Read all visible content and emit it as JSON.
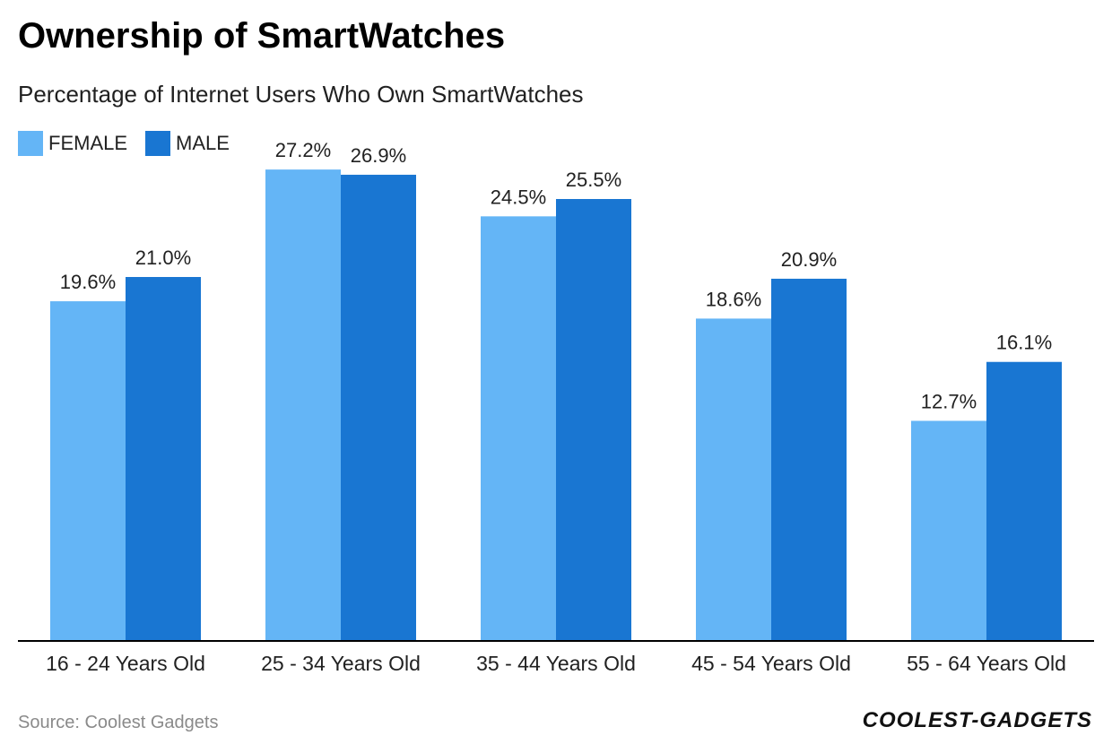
{
  "header": {
    "title": "Ownership of SmartWatches",
    "subtitle": "Percentage of Internet Users Who Own SmartWatches"
  },
  "colors": {
    "female": "#64b5f6",
    "male": "#1976d2",
    "axis": "#000000",
    "label": "#212121"
  },
  "chart_data": {
    "type": "bar",
    "title": "Ownership of SmartWatches",
    "subtitle": "Percentage of Internet Users Who Own SmartWatches",
    "categories": [
      "16 - 24 Years Old",
      "25 - 34 Years Old",
      "35 - 44 Years Old",
      "45 - 54 Years Old",
      "55 - 64 Years Old"
    ],
    "series": [
      {
        "name": "FEMALE",
        "values": [
          19.6,
          27.2,
          24.5,
          18.6,
          12.7
        ],
        "labels": [
          "19.6%",
          "27.2%",
          "24.5%",
          "18.6%",
          "12.7%"
        ]
      },
      {
        "name": "MALE",
        "values": [
          21.0,
          26.9,
          25.5,
          20.9,
          16.1
        ],
        "labels": [
          "21.0%",
          "26.9%",
          "25.5%",
          "20.9%",
          "16.1%"
        ]
      }
    ],
    "xlabel": "",
    "ylabel": "",
    "ylim": [
      0,
      30
    ],
    "grid": false,
    "legend": "top-left"
  },
  "footer": {
    "source": "Source: Coolest Gadgets",
    "brand": "COOLEST-GADGETS"
  }
}
